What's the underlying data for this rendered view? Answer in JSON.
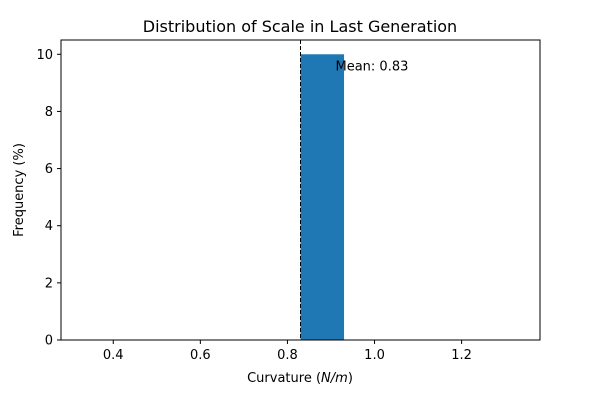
{
  "chart_data": {
    "type": "bar",
    "title": "Distribution of Scale in Last Generation",
    "xlabel_prefix": "Curvature (",
    "xlabel_unit": "N/m",
    "xlabel_suffix": ")",
    "ylabel": "Frequency (%)",
    "xlim": [
      0.28,
      1.38
    ],
    "ylim": [
      0,
      10.5
    ],
    "xticks": [
      0.4,
      0.6,
      0.8,
      1.0,
      1.2
    ],
    "xtick_labels": [
      "0.4",
      "0.6",
      "0.8",
      "1.0",
      "1.2"
    ],
    "yticks": [
      0,
      2,
      4,
      6,
      8,
      10
    ],
    "ytick_labels": [
      "0",
      "2",
      "4",
      "6",
      "8",
      "10"
    ],
    "bins": [
      {
        "x0": 0.83,
        "x1": 0.93,
        "value": 10
      }
    ],
    "mean": 0.83,
    "mean_label": "Mean: 0.83",
    "bar_color": "#1f77b4",
    "grid": false,
    "legend": "none"
  }
}
